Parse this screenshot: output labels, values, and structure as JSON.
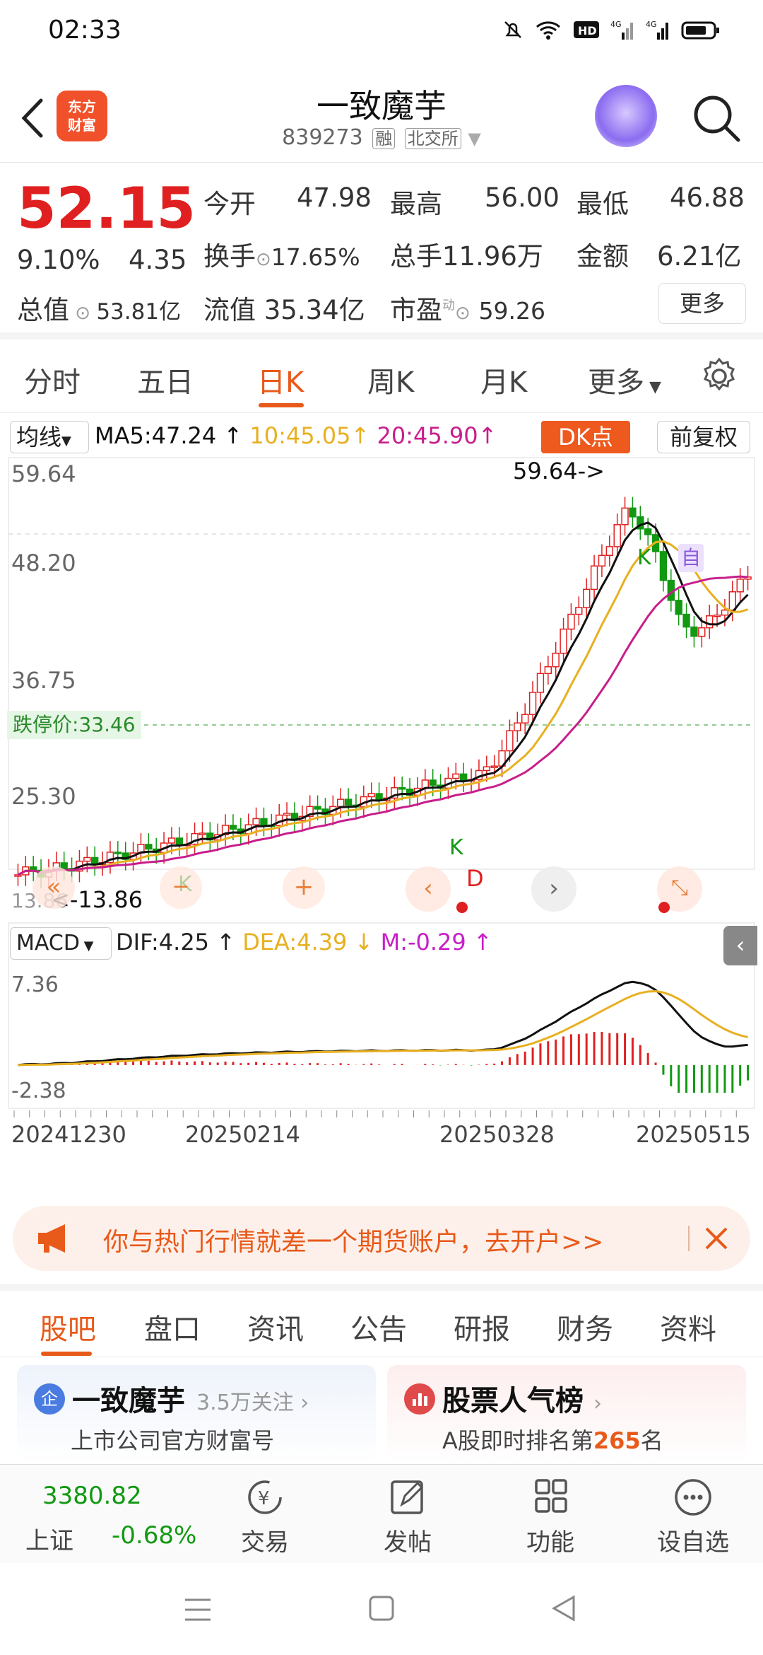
{
  "status": {
    "time": "02:33"
  },
  "header": {
    "logo": "东方\n财富",
    "title": "一致魔芋",
    "code": "839273",
    "tag1": "融",
    "tag2": "北交所"
  },
  "quote": {
    "price": "52.15",
    "pct": "9.10%",
    "chg": "4.35",
    "open_label": "今开",
    "open": "47.98",
    "high_label": "最高",
    "high": "56.00",
    "low_label": "最低",
    "low": "46.88",
    "turnover_label": "换手",
    "turnover": "17.65%",
    "volume_label": "总手",
    "volume": "11.96万",
    "amount_label": "金额",
    "amount": "6.21亿",
    "mcap_label": "总值",
    "mcap": "53.81亿",
    "float_label": "流值",
    "float": "35.34亿",
    "pe_label": "市盈",
    "pe_sup": "动",
    "pe": "59.26",
    "more": "更多"
  },
  "tabs": [
    "分时",
    "五日",
    "日K",
    "周K",
    "月K",
    "更多"
  ],
  "kline": {
    "ind_label": "均线",
    "ma5": "MA5:47.24",
    "ma10": "10:45.05",
    "ma20": "20:45.90",
    "dk": "DK点",
    "adj": "前复权",
    "y_labels": [
      "59.64",
      "48.20",
      "36.75",
      "25.30",
      "13.86"
    ],
    "high_mark": "59.64->",
    "low_mark": "<-13.86",
    "limit_down": "跌停价:33.46",
    "k_mark": "K",
    "d_mark": "D",
    "self_mark": "自"
  },
  "macd": {
    "label": "MACD",
    "dif": "DIF:4.25",
    "dea": "DEA:4.39",
    "m": "M:-0.29",
    "y_top": "7.36",
    "y_bottom": "-2.38"
  },
  "dates": [
    "20241230",
    "20250214",
    "20250328",
    "20250515"
  ],
  "chart_data": {
    "type": "candlestick",
    "title": "",
    "y_range": [
      13.86,
      59.64
    ],
    "high": 59.64,
    "low": 13.86,
    "limit_down": 33.46,
    "ma": {
      "MA5": 47.24,
      "MA10": 45.05,
      "MA20": 45.9
    },
    "macd": {
      "DIF": 4.25,
      "DEA": 4.39,
      "M": -0.29,
      "y_range": [
        -2.38,
        7.36
      ]
    },
    "x_ticks": [
      "20241230",
      "20250214",
      "20250328",
      "20250515"
    ]
  },
  "colors": {
    "up": "#e02020",
    "down": "#119911",
    "accent": "#e85a1a",
    "ma5": "#111111",
    "ma10": "#e8b020",
    "ma20": "#c81e8c"
  },
  "banner": {
    "text": "你与热门行情就差一个期货账户，去开户>>"
  },
  "bottom_tabs": [
    "股吧",
    "盘口",
    "资讯",
    "公告",
    "研报",
    "财务",
    "资料"
  ],
  "card1": {
    "name": "一致魔芋",
    "follow": "3.5万关注",
    "sub": "上市公司官方财富号",
    "badge": "企"
  },
  "card2": {
    "name": "股票人气榜",
    "sub_pre": "A股即时排名第",
    "rank": "265",
    "sub_post": "名"
  },
  "toolbar": {
    "index_value": "3380.82",
    "index_name": "上证",
    "index_pct": "-0.68%",
    "trade": "交易",
    "post": "发帖",
    "func": "功能",
    "watch": "设自选"
  }
}
